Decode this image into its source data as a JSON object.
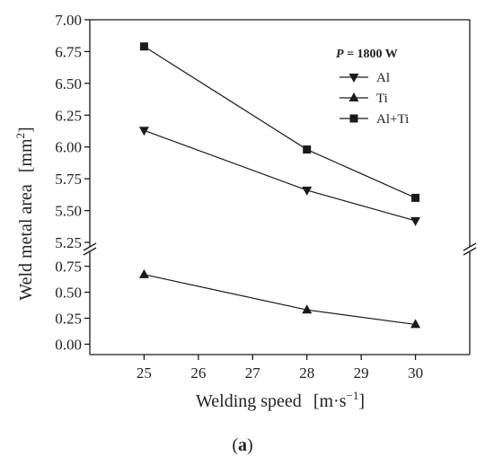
{
  "chart_data": {
    "type": "line",
    "x": [
      25,
      28,
      30
    ],
    "xlim": [
      24,
      31
    ],
    "xticks": [
      25,
      26,
      27,
      28,
      29,
      30
    ],
    "xlabel_main": "Welding speed",
    "xlabel_unit": "[m·s",
    "xlabel_sup": "−1",
    "xlabel_close": "]",
    "ylabel_main": "Weld metal area",
    "ylabel_unit": "[mm",
    "ylabel_sup": "2",
    "ylabel_close": "]",
    "y_break": true,
    "y_upper": {
      "range": [
        5.25,
        7.0
      ],
      "ticks": [
        "5.25",
        "5.50",
        "5.75",
        "6.00",
        "6.25",
        "6.50",
        "6.75",
        "7.00"
      ]
    },
    "y_lower": {
      "range": [
        -0.1,
        0.85
      ],
      "ticks": [
        "0.00",
        "0.25",
        "0.50",
        "0.75"
      ]
    },
    "legend": {
      "title_var": "P",
      "title_rest": " = 1800 W",
      "position": "top-right"
    },
    "series": [
      {
        "name": "Al",
        "marker": "triangle-down",
        "values": [
          6.13,
          5.66,
          5.42
        ]
      },
      {
        "name": "Ti",
        "marker": "triangle-up",
        "values": [
          0.67,
          0.33,
          0.19
        ]
      },
      {
        "name": "Al+Ti",
        "marker": "square",
        "values": [
          6.79,
          5.98,
          5.6
        ]
      }
    ],
    "caption_bold": "a",
    "caption_open": "(",
    "caption_close": ")",
    "color": "#1a1a1a"
  }
}
